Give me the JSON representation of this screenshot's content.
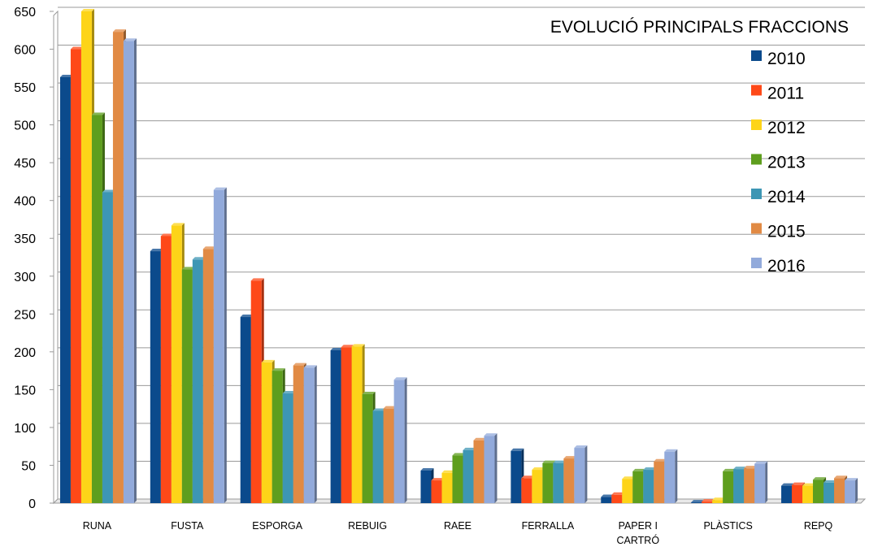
{
  "chart_data": {
    "type": "bar",
    "title": "EVOLUCIÓ PRINCIPALS FRACCIONS",
    "xlabel": "",
    "ylabel": "",
    "ylim": [
      0,
      650
    ],
    "yticks": [
      0,
      50,
      100,
      150,
      200,
      250,
      300,
      350,
      400,
      450,
      500,
      550,
      600,
      650
    ],
    "grid": true,
    "legend_position": "right",
    "categories": [
      [
        "RUNA"
      ],
      [
        "FUSTA"
      ],
      [
        "ESPORGA"
      ],
      [
        "REBUIG"
      ],
      [
        "RAEE"
      ],
      [
        "FERRALLA"
      ],
      [
        "PAPER I",
        "CARTRÓ"
      ],
      [
        "PLÀSTICS"
      ],
      [
        "REPQ"
      ]
    ],
    "series": [
      {
        "name": "2010",
        "color": "#0b4a8c",
        "values": [
          563,
          333,
          246,
          202,
          43,
          69,
          8,
          1,
          23
        ]
      },
      {
        "name": "2011",
        "color": "#fe4918",
        "values": [
          600,
          353,
          294,
          206,
          30,
          33,
          11,
          2,
          24
        ]
      },
      {
        "name": "2012",
        "color": "#fdd418",
        "values": [
          650,
          367,
          186,
          207,
          40,
          44,
          32,
          4,
          23
        ]
      },
      {
        "name": "2013",
        "color": "#5e9e1e",
        "values": [
          513,
          309,
          175,
          144,
          63,
          53,
          42,
          42,
          31
        ]
      },
      {
        "name": "2014",
        "color": "#3d96b4",
        "values": [
          411,
          322,
          145,
          122,
          70,
          53,
          44,
          45,
          27
        ]
      },
      {
        "name": "2015",
        "color": "#e18a44",
        "values": [
          623,
          336,
          182,
          125,
          83,
          59,
          55,
          46,
          33
        ]
      },
      {
        "name": "2016",
        "color": "#92aadb",
        "values": [
          611,
          414,
          179,
          163,
          89,
          73,
          68,
          52,
          30
        ]
      }
    ]
  }
}
